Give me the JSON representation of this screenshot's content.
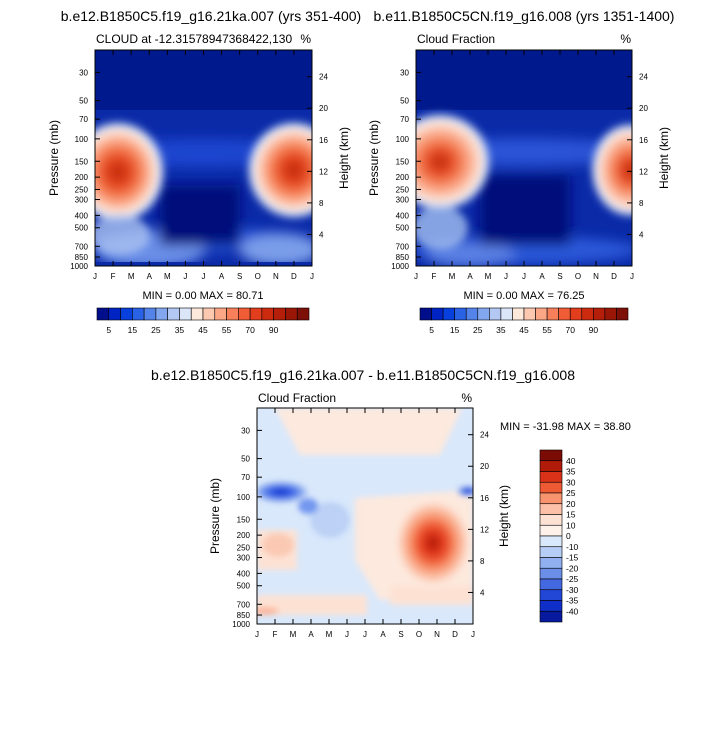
{
  "chart_data": [
    {
      "type": "heatmap",
      "title": "b.e12.B1850C5.f19_g16.21ka.007 (yrs 351-400)",
      "left_label": "CLOUD at -12.31578947368422,130",
      "right_label": "%",
      "ylabel": "Pressure (mb)",
      "ylabel_right": "Height (km)",
      "x_ticks": [
        "J",
        "F",
        "M",
        "A",
        "M",
        "J",
        "J",
        "A",
        "S",
        "O",
        "N",
        "D",
        "J"
      ],
      "y_ticks": [
        30,
        50,
        70,
        100,
        150,
        200,
        250,
        300,
        400,
        500,
        700,
        850,
        1000
      ],
      "y_ticks_right": [
        24,
        20,
        16,
        12,
        8,
        4
      ],
      "ylim": [
        1000,
        20
      ],
      "stats": "MIN =   0.00 MAX =  80.71",
      "colorbar": {
        "levels": [
          5,
          10,
          15,
          20,
          25,
          30,
          35,
          40,
          45,
          50,
          55,
          60,
          65,
          70,
          75,
          80,
          85,
          90
        ],
        "labels": [
          "5",
          "15",
          "25",
          "35",
          "45",
          "55",
          "70",
          "90"
        ]
      },
      "features": [
        {
          "month": 1.3,
          "pressure": 210,
          "value": 78
        },
        {
          "month": 11.7,
          "pressure": 210,
          "value": 80.71
        }
      ]
    },
    {
      "type": "heatmap",
      "title": "b.e11.B1850C5CN.f19_g16.008 (yrs 1351-1400)",
      "left_label": "Cloud Fraction",
      "right_label": "%",
      "ylabel": "Pressure (mb)",
      "ylabel_right": "Height (km)",
      "x_ticks": [
        "J",
        "F",
        "M",
        "A",
        "M",
        "J",
        "J",
        "A",
        "S",
        "O",
        "N",
        "D",
        "J"
      ],
      "y_ticks": [
        30,
        50,
        70,
        100,
        150,
        200,
        250,
        300,
        400,
        500,
        700,
        850,
        1000
      ],
      "y_ticks_right": [
        24,
        20,
        16,
        12,
        8,
        4
      ],
      "ylim": [
        1000,
        20
      ],
      "stats": "MIN =   0.00 MAX =  76.25",
      "colorbar": {
        "levels": [
          5,
          10,
          15,
          20,
          25,
          30,
          35,
          40,
          45,
          50,
          55,
          60,
          65,
          70,
          75,
          80,
          85,
          90
        ],
        "labels": [
          "5",
          "15",
          "25",
          "35",
          "45",
          "55",
          "70",
          "90"
        ]
      },
      "features": [
        {
          "month": 1.3,
          "pressure": 190,
          "value": 76.25
        },
        {
          "month": 12.0,
          "pressure": 200,
          "value": 72
        }
      ]
    },
    {
      "type": "heatmap",
      "title": "b.e12.B1850C5.f19_g16.21ka.007 - b.e11.B1850C5CN.f19_g16.008",
      "left_label": "Cloud Fraction",
      "right_label": "%",
      "ylabel": "Pressure (mb)",
      "ylabel_right": "Height (km)",
      "x_ticks": [
        "J",
        "F",
        "M",
        "A",
        "M",
        "J",
        "J",
        "A",
        "S",
        "O",
        "N",
        "D",
        "J"
      ],
      "y_ticks": [
        30,
        50,
        70,
        100,
        150,
        200,
        250,
        300,
        400,
        500,
        700,
        850,
        1000
      ],
      "y_ticks_right": [
        24,
        20,
        16,
        12,
        8,
        4
      ],
      "ylim": [
        1000,
        20
      ],
      "stats": "MIN = -31.98 MAX =  38.80",
      "colorbar": {
        "levels": [
          -40,
          -35,
          -30,
          -25,
          -20,
          -15,
          -10,
          0,
          10,
          15,
          20,
          25,
          30,
          35,
          40
        ],
        "labels": [
          "40",
          "35",
          "30",
          "25",
          "20",
          "15",
          "10",
          "0",
          "-10",
          "-15",
          "-20",
          "-25",
          "-30",
          "-35",
          "-40"
        ]
      },
      "features": [
        {
          "month": 1.4,
          "pressure": 100,
          "value": -31.98
        },
        {
          "month": 11.1,
          "pressure": 260,
          "value": 38.8
        }
      ]
    }
  ]
}
